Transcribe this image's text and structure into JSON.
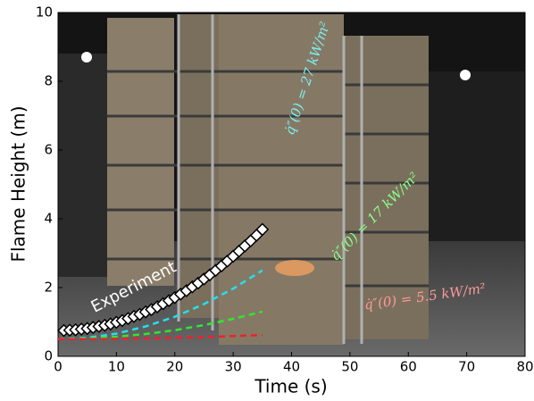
{
  "chart_data": {
    "type": "line",
    "x_label": "Time (s)",
    "y_label": "Flame Height (m)",
    "xlim": [
      0,
      80
    ],
    "xticks": [
      0,
      10,
      20,
      30,
      40,
      50,
      60,
      70,
      80
    ],
    "ylim": [
      0,
      10
    ],
    "yticks": [
      0,
      2,
      4,
      6,
      8,
      10
    ],
    "series": [
      {
        "name": "Experiment",
        "color": "#ffffff",
        "style": "markers",
        "x": [
          1,
          2,
          3,
          4,
          5,
          6,
          7,
          8,
          9,
          10,
          11,
          12,
          13,
          14,
          15,
          16,
          17,
          18,
          19,
          20,
          21,
          22,
          23,
          24,
          25,
          26,
          27,
          28,
          29,
          30,
          31,
          32,
          33,
          34,
          35
        ],
        "values": [
          0.75,
          0.76,
          0.77,
          0.79,
          0.81,
          0.84,
          0.87,
          0.9,
          0.94,
          0.99,
          1.04,
          1.1,
          1.16,
          1.22,
          1.29,
          1.36,
          1.44,
          1.53,
          1.62,
          1.71,
          1.81,
          1.91,
          2.02,
          2.13,
          2.25,
          2.37,
          2.5,
          2.63,
          2.77,
          2.91,
          3.06,
          3.21,
          3.36,
          3.52,
          3.69
        ]
      },
      {
        "name": "q̇″(0) = 27 kW/m²",
        "color": "#22e0f0",
        "style": "dashed",
        "x": [
          0,
          5,
          10,
          15,
          20,
          25,
          30,
          35
        ],
        "values": [
          0.5,
          0.54,
          0.66,
          0.87,
          1.15,
          1.52,
          1.97,
          2.5
        ]
      },
      {
        "name": "q̇″(0) = 17 kW/m²",
        "color": "#2ee82e",
        "style": "dashed",
        "x": [
          0,
          5,
          10,
          15,
          20,
          25,
          30,
          35
        ],
        "values": [
          0.5,
          0.52,
          0.57,
          0.65,
          0.76,
          0.91,
          1.09,
          1.3
        ]
      },
      {
        "name": "q̇″(0) = 5.5 kW/m²",
        "color": "#f0202a",
        "style": "dashed",
        "x": [
          0,
          5,
          10,
          15,
          20,
          25,
          30,
          35
        ],
        "values": [
          0.5,
          0.5,
          0.51,
          0.52,
          0.54,
          0.56,
          0.59,
          0.62
        ]
      }
    ]
  }
}
